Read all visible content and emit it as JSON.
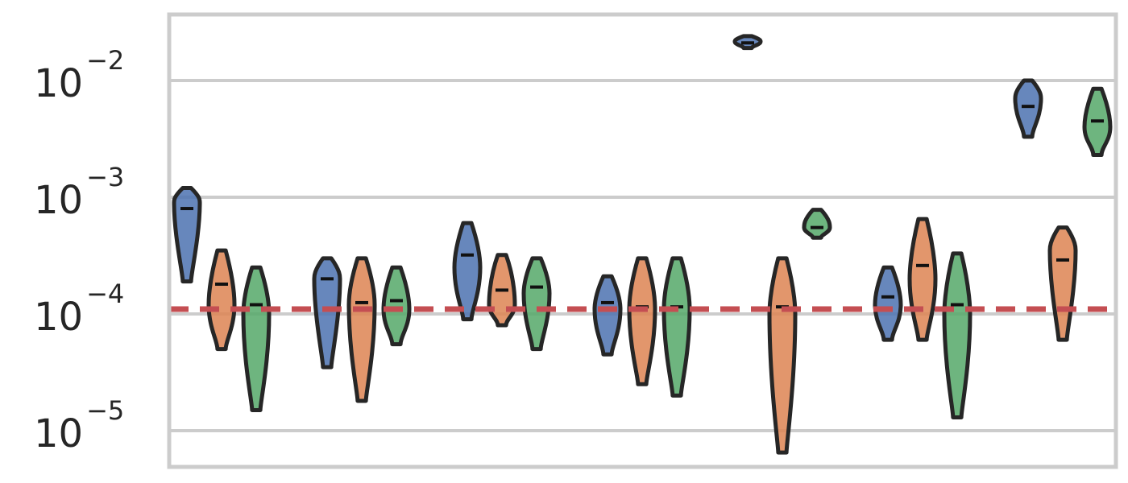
{
  "chart_data": {
    "type": "violin",
    "title": "",
    "xlabel": "",
    "ylabel": "",
    "y_scale": "log",
    "ylim": [
      5e-06,
      0.035
    ],
    "grid": true,
    "legend": "none",
    "y_ticks": [
      {
        "value": 0.01,
        "base": "10",
        "exponent": "−2"
      },
      {
        "value": 0.001,
        "base": "10",
        "exponent": "−3"
      },
      {
        "value": 0.0001,
        "base": "10",
        "exponent": "−4"
      },
      {
        "value": 1e-05,
        "base": "10",
        "exponent": "−5"
      }
    ],
    "reference_line": {
      "value": 0.00011,
      "color": "#c44e52",
      "style": "dashed"
    },
    "series_colors": [
      "#4c72b0",
      "#dd8452",
      "#55a868"
    ],
    "groups": 7,
    "violins": [
      {
        "group": 0,
        "series": 0,
        "min": 0.00019,
        "max": 0.0012,
        "median": 0.0008,
        "peak": 0.0009
      },
      {
        "group": 0,
        "series": 1,
        "min": 5e-05,
        "max": 0.00035,
        "median": 0.00018,
        "peak": 0.00012
      },
      {
        "group": 0,
        "series": 2,
        "min": 1.5e-05,
        "max": 0.00025,
        "median": 0.00012,
        "peak": 0.0001
      },
      {
        "group": 1,
        "series": 0,
        "min": 3.5e-05,
        "max": 0.0003,
        "median": 0.0002,
        "peak": 0.0002
      },
      {
        "group": 1,
        "series": 1,
        "min": 1.8e-05,
        "max": 0.0003,
        "median": 0.000125,
        "peak": 0.00012
      },
      {
        "group": 1,
        "series": 2,
        "min": 5.5e-05,
        "max": 0.00025,
        "median": 0.00013,
        "peak": 0.00011
      },
      {
        "group": 2,
        "series": 0,
        "min": 9e-05,
        "max": 0.0006,
        "median": 0.00032,
        "peak": 0.00025
      },
      {
        "group": 2,
        "series": 1,
        "min": 8e-05,
        "max": 0.00032,
        "median": 0.00016,
        "peak": 0.00012
      },
      {
        "group": 2,
        "series": 2,
        "min": 5e-05,
        "max": 0.0003,
        "median": 0.00017,
        "peak": 0.00015
      },
      {
        "group": 3,
        "series": 0,
        "min": 4.5e-05,
        "max": 0.00021,
        "median": 0.000125,
        "peak": 0.00011
      },
      {
        "group": 3,
        "series": 1,
        "min": 2.5e-05,
        "max": 0.0003,
        "median": 0.000115,
        "peak": 0.00011
      },
      {
        "group": 3,
        "series": 2,
        "min": 2e-05,
        "max": 0.0003,
        "median": 0.000115,
        "peak": 0.00011
      },
      {
        "group": 4,
        "series": 0,
        "min": 0.019,
        "max": 0.024,
        "median": 0.021,
        "peak": 0.021
      },
      {
        "group": 4,
        "series": 1,
        "min": 6.5e-06,
        "max": 0.0003,
        "median": 0.000115,
        "peak": 0.0001
      },
      {
        "group": 4,
        "series": 2,
        "min": 0.00045,
        "max": 0.00078,
        "median": 0.00055,
        "peak": 0.00055
      },
      {
        "group": 5,
        "series": 0,
        "min": 6e-05,
        "max": 0.00025,
        "median": 0.00014,
        "peak": 0.00012
      },
      {
        "group": 5,
        "series": 1,
        "min": 6e-05,
        "max": 0.00065,
        "median": 0.00026,
        "peak": 0.0002
      },
      {
        "group": 5,
        "series": 2,
        "min": 1.3e-05,
        "max": 0.00033,
        "median": 0.00012,
        "peak": 0.0001
      },
      {
        "group": 6,
        "series": 0,
        "min": 0.0033,
        "max": 0.01,
        "median": 0.006,
        "peak": 0.007
      },
      {
        "group": 6,
        "series": 1,
        "min": 6e-05,
        "max": 0.00055,
        "median": 0.00029,
        "peak": 0.00035
      },
      {
        "group": 6,
        "series": 2,
        "min": 0.0023,
        "max": 0.0085,
        "median": 0.0045,
        "peak": 0.004
      }
    ]
  }
}
